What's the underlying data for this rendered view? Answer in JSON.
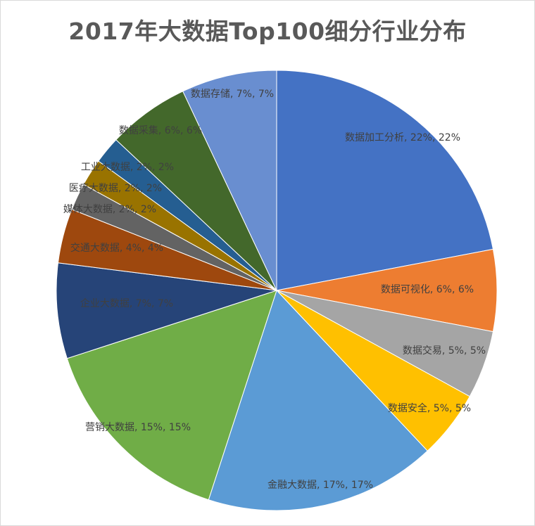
{
  "chart_data": {
    "type": "pie",
    "title": "2017年大数据Top100细分行业分布",
    "start_angle_deg": 0,
    "direction": "clockwise",
    "slices": [
      {
        "label": "数据加工分析, 22%, 22%",
        "value": 22,
        "color": "#4472c4"
      },
      {
        "label": "数据可视化, 6%, 6%",
        "value": 6,
        "color": "#ed7d31"
      },
      {
        "label": "数据交易, 5%, 5%",
        "value": 5,
        "color": "#a5a5a5"
      },
      {
        "label": "数据安全, 5%, 5%",
        "value": 5,
        "color": "#ffc000"
      },
      {
        "label": "金融大数据, 17%, 17%",
        "value": 17,
        "color": "#5b9bd5"
      },
      {
        "label": "营销大数据, 15%, 15%",
        "value": 15,
        "color": "#70ad47"
      },
      {
        "label": "企业大数据, 7%, 7%",
        "value": 7,
        "color": "#264478"
      },
      {
        "label": "交通大数据, 4%, 4%",
        "value": 4,
        "color": "#9e480e"
      },
      {
        "label": "媒体大数据, 2%, 2%",
        "value": 2,
        "color": "#636363"
      },
      {
        "label": "医疗大数据, 2%, 2%",
        "value": 2,
        "color": "#997300"
      },
      {
        "label": "工业大数据, 2%, 2%",
        "value": 2,
        "color": "#255e91"
      },
      {
        "label": "数据采集, 6%, 6%",
        "value": 6,
        "color": "#43682b"
      },
      {
        "label": "数据存储, 7%, 7%",
        "value": 7,
        "color": "#698ed0"
      }
    ]
  }
}
